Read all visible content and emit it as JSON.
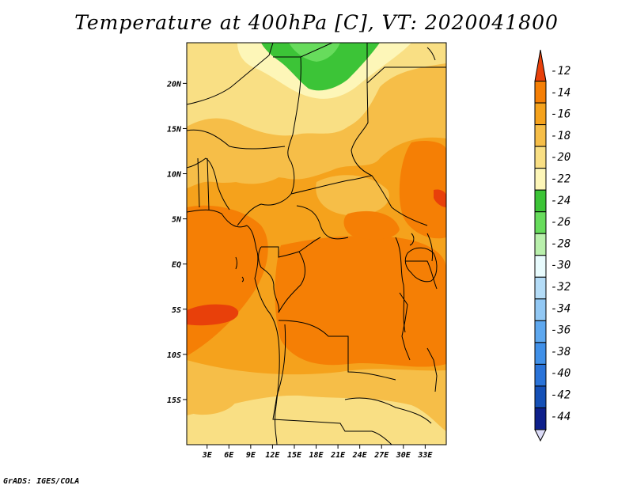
{
  "title": "Temperature at 400hPa [C], VT: 2020041800",
  "credit": "GrADS: IGES/COLA",
  "map": {
    "lat_range": [
      -20,
      24.5
    ],
    "lon_range": [
      0.2,
      35.9
    ],
    "lat_ticks": [
      {
        "value": 20,
        "label": "20N"
      },
      {
        "value": 15,
        "label": "15N"
      },
      {
        "value": 10,
        "label": "10N"
      },
      {
        "value": 5,
        "label": "5N"
      },
      {
        "value": 0,
        "label": "EQ"
      },
      {
        "value": -5,
        "label": "5S"
      },
      {
        "value": -10,
        "label": "10S"
      },
      {
        "value": -15,
        "label": "15S"
      }
    ],
    "lon_ticks": [
      {
        "value": 3,
        "label": "3E"
      },
      {
        "value": 6,
        "label": "6E"
      },
      {
        "value": 9,
        "label": "9E"
      },
      {
        "value": 12,
        "label": "12E"
      },
      {
        "value": 15,
        "label": "15E"
      },
      {
        "value": 18,
        "label": "18E"
      },
      {
        "value": 21,
        "label": "21E"
      },
      {
        "value": 24,
        "label": "24E"
      },
      {
        "value": 27,
        "label": "27E"
      },
      {
        "value": 30,
        "label": "30E"
      },
      {
        "value": 33,
        "label": "33E"
      }
    ]
  },
  "colorbar": {
    "labels": [
      "-12",
      "-14",
      "-16",
      "-18",
      "-20",
      "-22",
      "-24",
      "-26",
      "-28",
      "-30",
      "-32",
      "-34",
      "-36",
      "-38",
      "-40",
      "-42",
      "-44"
    ],
    "colors": [
      "#e8400a",
      "#f57f05",
      "#f5a21c",
      "#f6be48",
      "#f9df84",
      "#fdf6b8",
      "#3cc437",
      "#67dc5c",
      "#b9f0ac",
      "#e8fbfd",
      "#b4dcf7",
      "#92c8f4",
      "#5ea8ef",
      "#4090e8",
      "#2a73d8",
      "#1550b6",
      "#0e208b",
      "#dcdcf8"
    ]
  }
}
